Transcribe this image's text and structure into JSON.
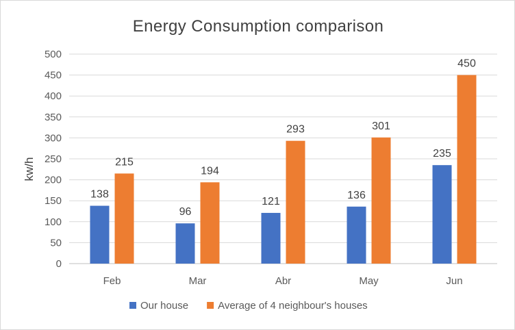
{
  "chart_data": {
    "type": "bar",
    "title": "Energy Consumption comparison",
    "xlabel": "",
    "ylabel": "kw/h",
    "categories": [
      "Feb",
      "Mar",
      "Abr",
      "May",
      "Jun"
    ],
    "series": [
      {
        "name": "Our house",
        "color": "#4472c4",
        "values": [
          138,
          96,
          121,
          136,
          235
        ]
      },
      {
        "name": "Average of 4 neighbour's houses",
        "color": "#ed7d31",
        "values": [
          215,
          194,
          293,
          301,
          450
        ]
      }
    ],
    "ylim": [
      0,
      500
    ],
    "yticks": [
      0,
      50,
      100,
      150,
      200,
      250,
      300,
      350,
      400,
      450,
      500
    ],
    "grid": true,
    "legend_position": "bottom"
  }
}
